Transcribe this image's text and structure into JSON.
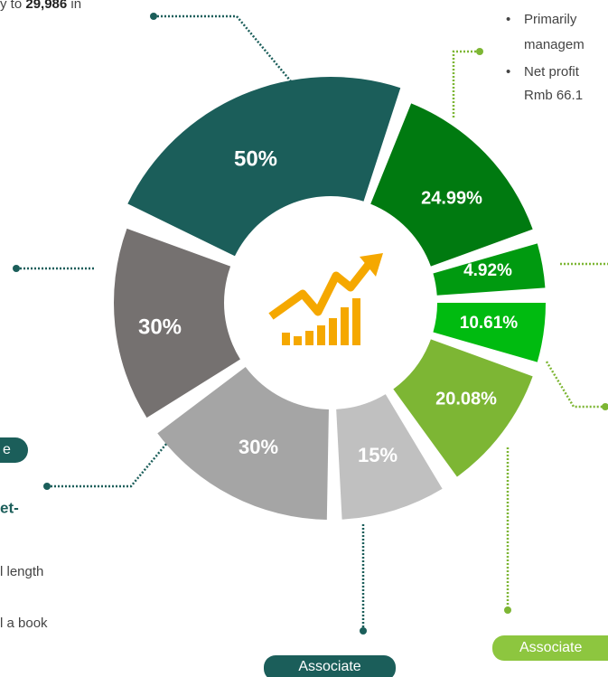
{
  "top_note": {
    "prefix": "y to",
    "bold": "29,986",
    "suffix": "in"
  },
  "right_bullets": [
    "Primarily",
    "managem",
    "Net profit",
    "Rmb 66.1"
  ],
  "left_notes": {
    "pill": "e",
    "bold": "et-",
    "lines": [
      "l length",
      "l a book"
    ]
  },
  "segments": [
    "50%",
    "24.99%",
    "4.92%",
    "10.61%",
    "20.08%",
    "15%",
    "30%",
    "30%"
  ],
  "pills": [
    "Associate",
    "Associate"
  ]
}
